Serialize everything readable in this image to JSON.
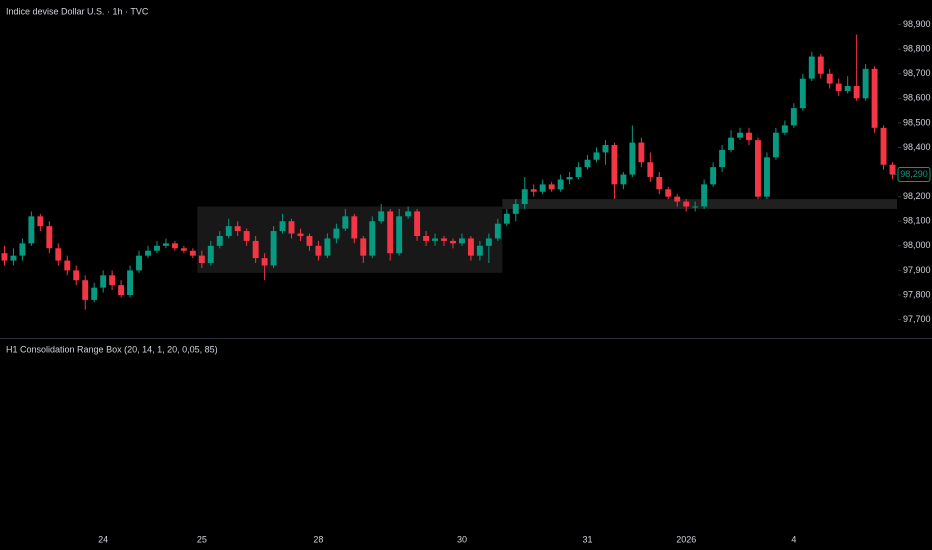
{
  "chart_data": {
    "type": "candlestick",
    "title": "Indice devise Dollar U.S. · 1h · TVC",
    "indicator": "H1 Consolidation Range Box (20, 14, 1, 20, 0,05, 85)",
    "up_color": "#089981",
    "down_color": "#f23645",
    "ylim": [
      97625,
      99000
    ],
    "yticks": [
      {
        "value": 97700,
        "label": "97,700"
      },
      {
        "value": 97800,
        "label": "97,800"
      },
      {
        "value": 97900,
        "label": "97,900"
      },
      {
        "value": 98000,
        "label": "98,000"
      },
      {
        "value": 98100,
        "label": "98,100"
      },
      {
        "value": 98200,
        "label": "98,200"
      },
      {
        "value": 98300,
        "label": "98,300"
      },
      {
        "value": 98400,
        "label": "98,400"
      },
      {
        "value": 98500,
        "label": "98,500"
      },
      {
        "value": 98600,
        "label": "98,600"
      },
      {
        "value": 98700,
        "label": "98,700"
      },
      {
        "value": 98800,
        "label": "98,800"
      },
      {
        "value": 98900,
        "label": "98,900"
      }
    ],
    "last_price": {
      "value": 98290,
      "label": "98,290"
    },
    "categories": [
      null,
      null,
      null,
      null,
      null,
      null,
      null,
      null,
      null,
      null,
      null,
      "24",
      null,
      null,
      null,
      null,
      null,
      null,
      null,
      null,
      null,
      null,
      "25",
      null,
      null,
      null,
      null,
      null,
      null,
      null,
      null,
      null,
      null,
      null,
      null,
      "28",
      null,
      null,
      null,
      null,
      null,
      null,
      null,
      null,
      null,
      null,
      null,
      null,
      null,
      null,
      null,
      "30",
      null,
      null,
      null,
      null,
      null,
      null,
      null,
      null,
      null,
      null,
      null,
      null,
      null,
      "31",
      null,
      null,
      null,
      null,
      null,
      null,
      null,
      null,
      null,
      null,
      "2026",
      null,
      null,
      null,
      null,
      null,
      null,
      null,
      null,
      null,
      null,
      null,
      "4",
      null,
      null,
      null,
      null,
      null,
      null,
      null,
      null,
      null,
      null,
      null
    ],
    "candles": [
      [
        97970,
        98000,
        97920,
        97940
      ],
      [
        97940,
        97990,
        97920,
        97960
      ],
      [
        97960,
        98030,
        97940,
        98010
      ],
      [
        98010,
        98140,
        98000,
        98120
      ],
      [
        98120,
        98130,
        98060,
        98080
      ],
      [
        98080,
        98100,
        97970,
        97990
      ],
      [
        97990,
        98010,
        97920,
        97940
      ],
      [
        97940,
        97960,
        97880,
        97900
      ],
      [
        97900,
        97920,
        97840,
        97860
      ],
      [
        97860,
        97880,
        97740,
        97780
      ],
      [
        97780,
        97850,
        97770,
        97830
      ],
      [
        97830,
        97900,
        97810,
        97880
      ],
      [
        97880,
        97900,
        97820,
        97840
      ],
      [
        97840,
        97860,
        97790,
        97800
      ],
      [
        97800,
        97920,
        97790,
        97900
      ],
      [
        97900,
        97980,
        97890,
        97960
      ],
      [
        97960,
        98000,
        97950,
        97980
      ],
      [
        97980,
        98020,
        97970,
        98000
      ],
      [
        98000,
        98030,
        97990,
        98010
      ],
      [
        98010,
        98020,
        97980,
        97990
      ],
      [
        97990,
        98000,
        97970,
        97980
      ],
      [
        97980,
        97990,
        97950,
        97960
      ],
      [
        97960,
        97980,
        97910,
        97930
      ],
      [
        97930,
        98020,
        97920,
        98000
      ],
      [
        98000,
        98060,
        97990,
        98040
      ],
      [
        98040,
        98110,
        98030,
        98080
      ],
      [
        98080,
        98100,
        98040,
        98060
      ],
      [
        98060,
        98070,
        98000,
        98020
      ],
      [
        98020,
        98040,
        97930,
        97950
      ],
      [
        97950,
        97970,
        97860,
        97920
      ],
      [
        97920,
        98080,
        97910,
        98060
      ],
      [
        98060,
        98130,
        98050,
        98100
      ],
      [
        98100,
        98110,
        98030,
        98050
      ],
      [
        98050,
        98070,
        98020,
        98040
      ],
      [
        98040,
        98050,
        97980,
        98000
      ],
      [
        98000,
        98020,
        97940,
        97960
      ],
      [
        97960,
        98050,
        97950,
        98030
      ],
      [
        98030,
        98090,
        98010,
        98070
      ],
      [
        98070,
        98150,
        98060,
        98120
      ],
      [
        98120,
        98130,
        98010,
        98030
      ],
      [
        98030,
        98040,
        97930,
        97960
      ],
      [
        97960,
        98120,
        97950,
        98100
      ],
      [
        98100,
        98170,
        98090,
        98140
      ],
      [
        98140,
        98150,
        97940,
        97970
      ],
      [
        97970,
        98150,
        97960,
        98120
      ],
      [
        98120,
        98160,
        98110,
        98140
      ],
      [
        98140,
        98150,
        98020,
        98040
      ],
      [
        98040,
        98060,
        98000,
        98020
      ],
      [
        98020,
        98050,
        98000,
        98030
      ],
      [
        98030,
        98040,
        98000,
        98020
      ],
      [
        98020,
        98030,
        97990,
        98010
      ],
      [
        98010,
        98050,
        98000,
        98030
      ],
      [
        98030,
        98040,
        97940,
        97960
      ],
      [
        97960,
        98020,
        97940,
        98000
      ],
      [
        98000,
        98050,
        97930,
        98030
      ],
      [
        98030,
        98110,
        98020,
        98090
      ],
      [
        98090,
        98150,
        98080,
        98130
      ],
      [
        98130,
        98190,
        98100,
        98170
      ],
      [
        98170,
        98280,
        98150,
        98230
      ],
      [
        98230,
        98250,
        98200,
        98220
      ],
      [
        98220,
        98270,
        98210,
        98250
      ],
      [
        98250,
        98260,
        98220,
        98230
      ],
      [
        98230,
        98290,
        98220,
        98270
      ],
      [
        98270,
        98300,
        98250,
        98280
      ],
      [
        98280,
        98340,
        98270,
        98320
      ],
      [
        98320,
        98370,
        98310,
        98350
      ],
      [
        98350,
        98400,
        98340,
        98380
      ],
      [
        98380,
        98430,
        98330,
        98410
      ],
      [
        98410,
        98420,
        98190,
        98250
      ],
      [
        98250,
        98300,
        98230,
        98290
      ],
      [
        98290,
        98490,
        98280,
        98420
      ],
      [
        98420,
        98440,
        98320,
        98340
      ],
      [
        98340,
        98380,
        98260,
        98280
      ],
      [
        98280,
        98300,
        98210,
        98230
      ],
      [
        98230,
        98240,
        98190,
        98200
      ],
      [
        98200,
        98210,
        98160,
        98180
      ],
      [
        98180,
        98190,
        98140,
        98160
      ],
      [
        98160,
        98180,
        98140,
        98160
      ],
      [
        98160,
        98270,
        98150,
        98250
      ],
      [
        98250,
        98340,
        98240,
        98320
      ],
      [
        98320,
        98410,
        98300,
        98390
      ],
      [
        98390,
        98470,
        98380,
        98440
      ],
      [
        98440,
        98480,
        98430,
        98460
      ],
      [
        98460,
        98480,
        98410,
        98430
      ],
      [
        98430,
        98440,
        98190,
        98200
      ],
      [
        98200,
        98380,
        98190,
        98360
      ],
      [
        98360,
        98480,
        98350,
        98460
      ],
      [
        98460,
        98510,
        98450,
        98490
      ],
      [
        98490,
        98580,
        98480,
        98560
      ],
      [
        98560,
        98700,
        98550,
        98680
      ],
      [
        98680,
        98790,
        98670,
        98770
      ],
      [
        98770,
        98780,
        98680,
        98700
      ],
      [
        98700,
        98720,
        98640,
        98660
      ],
      [
        98660,
        98680,
        98610,
        98630
      ],
      [
        98630,
        98690,
        98620,
        98650
      ],
      [
        98650,
        98860,
        98590,
        98600
      ],
      [
        98600,
        98740,
        98590,
        98720
      ],
      [
        98720,
        98730,
        98460,
        98480
      ],
      [
        98480,
        98490,
        98310,
        98330
      ],
      [
        98330,
        98340,
        98270,
        98290
      ]
    ],
    "boxes": [
      {
        "top": 98160,
        "bottom": 97890,
        "start": 22,
        "end": 55
      },
      {
        "top": 98190,
        "bottom": 98150,
        "start": 56,
        "end": 99
      }
    ]
  }
}
